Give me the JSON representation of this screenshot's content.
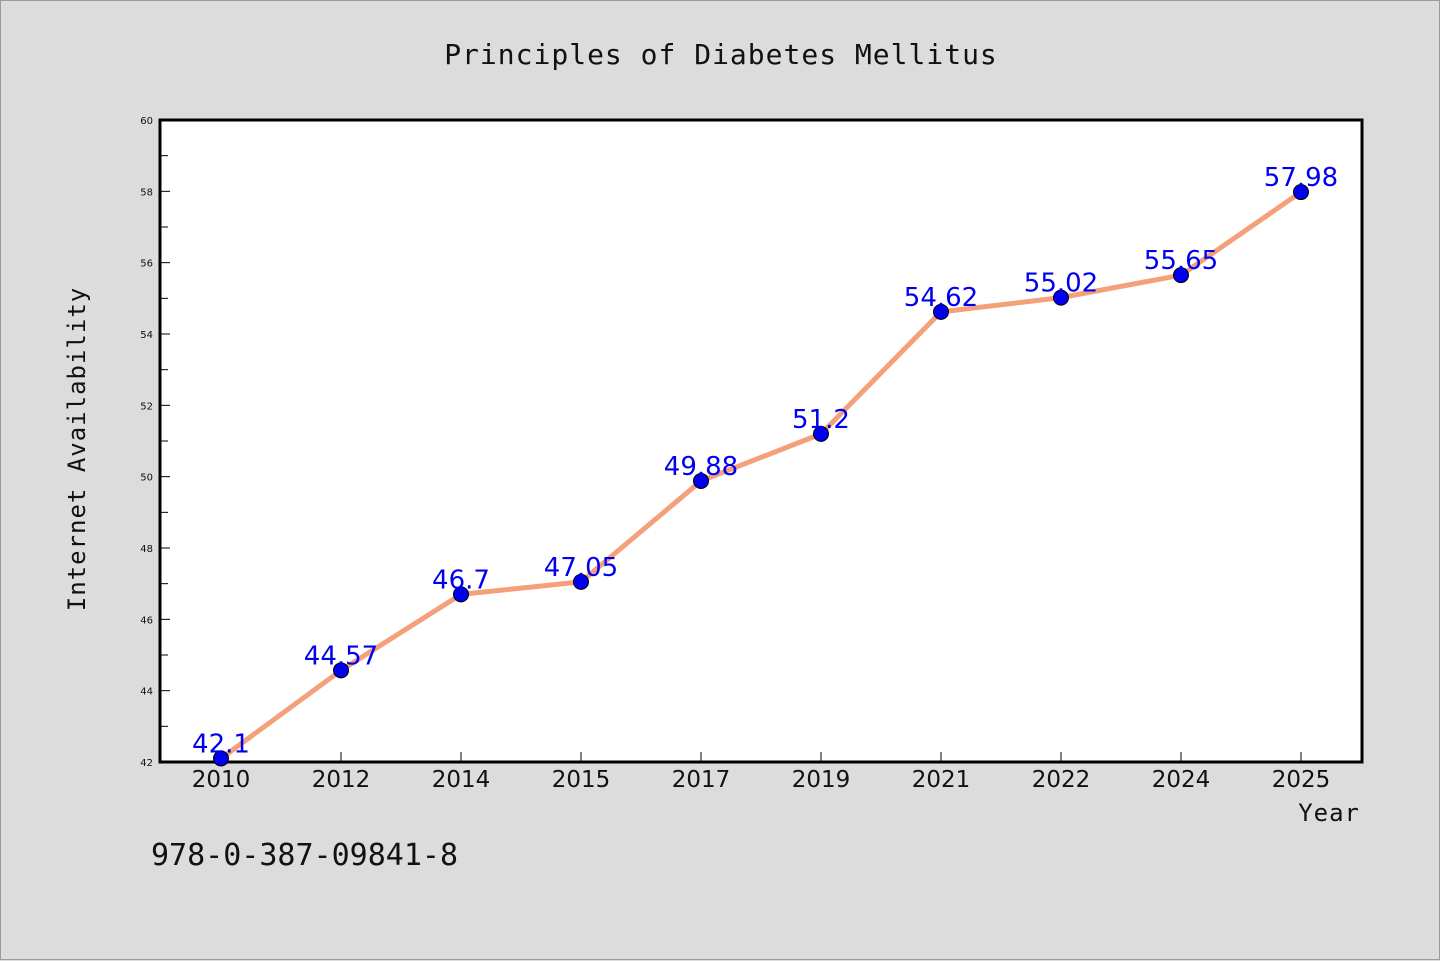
{
  "chart_data": {
    "type": "line",
    "title": "Principles of Diabetes Mellitus",
    "xlabel": "Year",
    "ylabel": "Internet Availability",
    "categories": [
      "2010",
      "2012",
      "2014",
      "2015",
      "2017",
      "2019",
      "2021",
      "2022",
      "2024",
      "2025"
    ],
    "series": [
      {
        "values": [
          42.1,
          44.57,
          46.7,
          47.05,
          49.88,
          51.2,
          54.62,
          55.02,
          55.65,
          57.98
        ],
        "labels": [
          "42.1",
          "44.57",
          "46.7",
          "47.05",
          "49.88",
          "51.2",
          "54.62",
          "55.02",
          "55.65",
          "57.98"
        ],
        "line_color": "#f4a07a",
        "marker_color": "#0000ee",
        "label_color": "#0000ee"
      }
    ],
    "ylim": [
      42,
      60
    ],
    "yticks": [
      "42",
      "44",
      "46",
      "48",
      "50",
      "52",
      "54",
      "56",
      "58",
      "60"
    ],
    "grid": false,
    "legend": "none"
  },
  "footnote": "978-0-387-09841-8",
  "colors": {
    "background": "#dcdcdc",
    "plot_area": "#ffffff",
    "axis": "#000000"
  }
}
